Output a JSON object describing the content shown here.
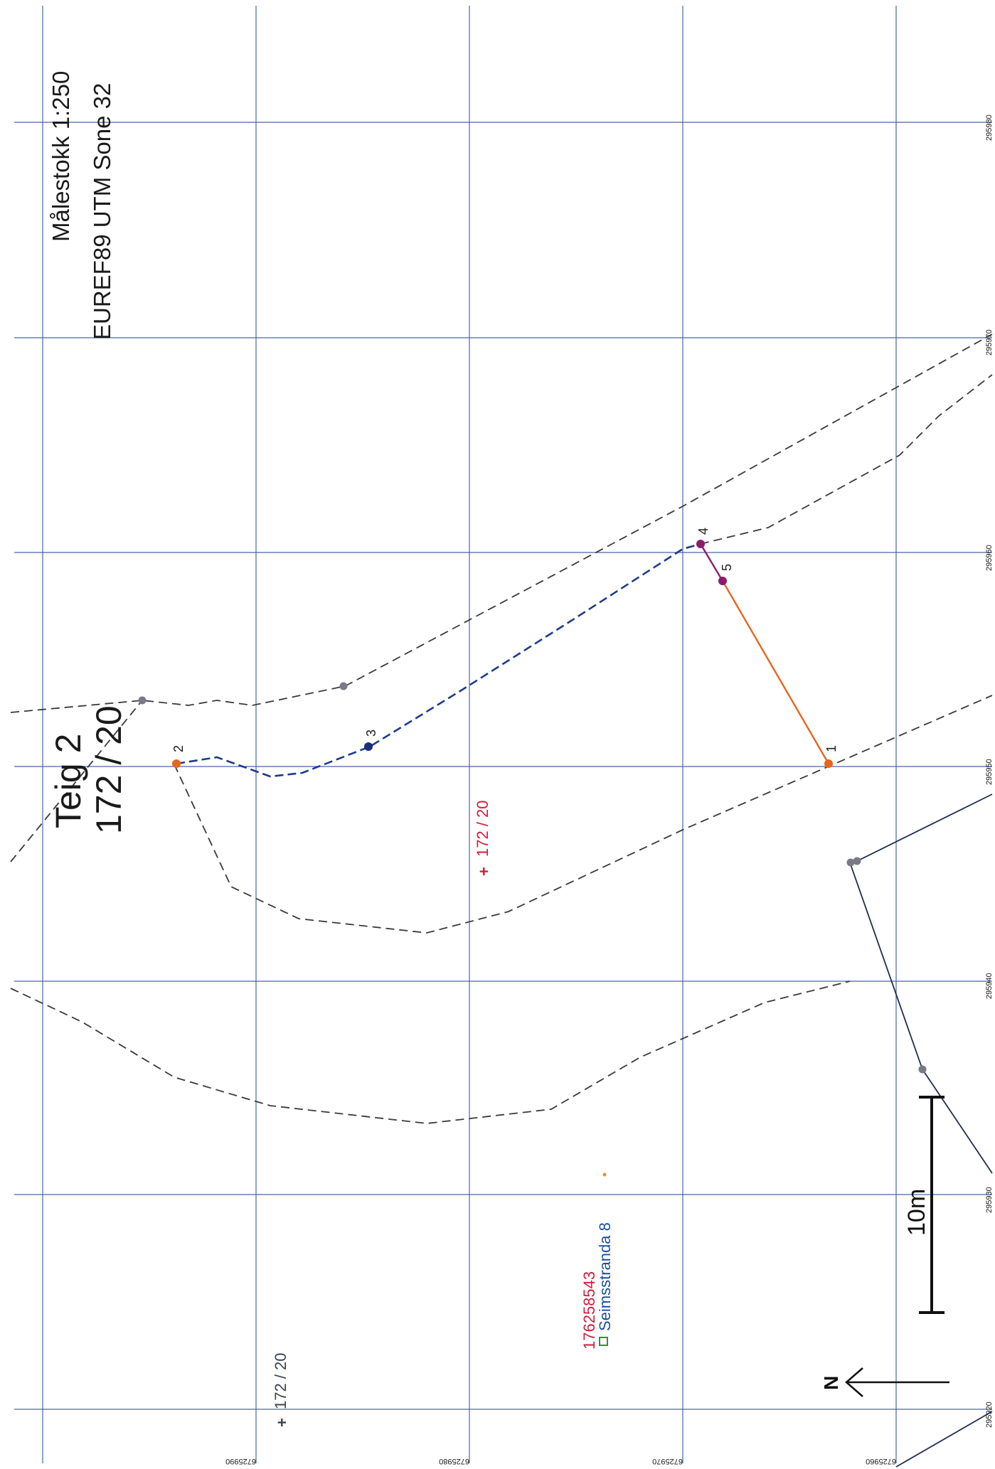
{
  "map": {
    "scale_label": "Målestokk 1:250",
    "crs_label": "EUREF89 UTM Sone 32",
    "parcel_title_line1": "Teig 2",
    "parcel_title_line2": "172 / 20",
    "parcel_label_center": "172 / 20",
    "parcel_label_bottom": "172 / 20",
    "address_id": "176258543",
    "address_name": "Seimsstranda 8",
    "scalebar_label": "10m",
    "north_label": "N",
    "easting_ticks": [
      "295920",
      "295930",
      "295940",
      "295950",
      "295960",
      "295970",
      "295980"
    ],
    "northing_ticks": [
      "6725990",
      "6725980",
      "6725970",
      "6725960"
    ],
    "points": [
      {
        "label": "1"
      },
      {
        "label": "2"
      },
      {
        "label": "3"
      },
      {
        "label": "4"
      },
      {
        "label": "5"
      }
    ]
  },
  "colors": {
    "grid": "#4a64a6",
    "dashed": "#3a3a3a",
    "blue_boundary": "#1c3c8c",
    "orange_boundary": "#e8651e",
    "purple_boundary": "#8c1c6c",
    "navy_line": "#1f2d52",
    "label_red": "#d7193a",
    "label_blue": "#1a4fa0",
    "point_gray": "#7a7a86"
  }
}
